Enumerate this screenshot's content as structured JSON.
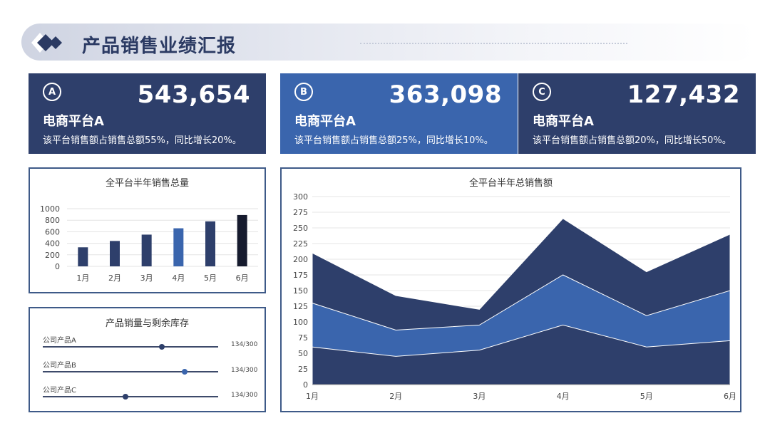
{
  "header": {
    "title": "产品销售业绩汇报"
  },
  "cards": [
    {
      "badge": "A",
      "value": "543,654",
      "name": "电商平台A",
      "desc": "该平台销售额占销售总额55%，同比增长20%。",
      "bg": "#2e3f6b"
    },
    {
      "badge": "B",
      "value": "363,098",
      "name": "电商平台A",
      "desc": "该平台销售额占销售总额25%，同比增长10%。",
      "bg": "#3a65ad"
    },
    {
      "badge": "C",
      "value": "127,432",
      "name": "电商平台A",
      "desc": "该平台销售额占销售总额20%，同比增长50%。",
      "bg": "#2e3f6b"
    }
  ],
  "colors": {
    "navy": "#2e3f6b",
    "blue": "#3a65ad",
    "dark": "#161b2e",
    "border": "#3e5a88"
  },
  "chart_data": [
    {
      "type": "bar",
      "title": "全平台半年销售总量",
      "categories": [
        "1月",
        "2月",
        "3月",
        "4月",
        "5月",
        "6月"
      ],
      "values": [
        330,
        440,
        550,
        660,
        780,
        890
      ],
      "bar_colors": [
        "#2e3f6b",
        "#2e3f6b",
        "#2e3f6b",
        "#3a65ad",
        "#2e3f6b",
        "#161b2e"
      ],
      "ylim": [
        0,
        1000
      ],
      "yticks": [
        0,
        200,
        400,
        600,
        800,
        1000
      ],
      "grid": true
    },
    {
      "type": "area",
      "title": "全平台半年总销售额",
      "categories": [
        "1月",
        "2月",
        "3月",
        "4月",
        "5月",
        "6月"
      ],
      "series": [
        {
          "values": [
            60,
            45,
            55,
            95,
            60,
            70
          ],
          "color": "#2e3f6b"
        },
        {
          "values": [
            70,
            42,
            40,
            80,
            50,
            80
          ],
          "color": "#3a65ad"
        },
        {
          "values": [
            80,
            55,
            25,
            90,
            70,
            90
          ],
          "color": "#2e3f6b"
        }
      ],
      "ylim": [
        0,
        300
      ],
      "yticks": [
        0,
        25,
        50,
        75,
        100,
        125,
        150,
        175,
        200,
        225,
        250,
        275,
        300
      ],
      "stacked": true,
      "grid": true
    }
  ],
  "inventory": {
    "title": "产品销量与剩余库存",
    "items": [
      {
        "label": "公司产品A",
        "value_text": "134/300",
        "level": 0.68
      },
      {
        "label": "公司产品B",
        "value_text": "134/300",
        "level": 0.81
      },
      {
        "label": "公司产品C",
        "value_text": "134/300",
        "level": 0.47
      }
    ]
  }
}
